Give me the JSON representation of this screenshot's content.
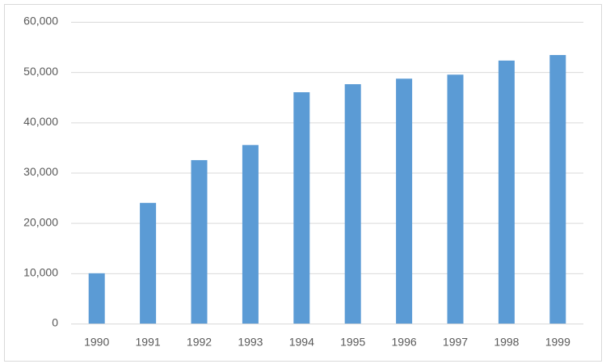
{
  "chart_data": {
    "type": "bar",
    "categories": [
      "1990",
      "1991",
      "1992",
      "1993",
      "1994",
      "1995",
      "1996",
      "1997",
      "1998",
      "1999"
    ],
    "values": [
      10000,
      24000,
      32500,
      35500,
      46000,
      47600,
      48700,
      49500,
      52300,
      53400
    ],
    "color": "#5b9bd5",
    "ylim": [
      0,
      60000
    ],
    "yticks": [
      0,
      {
        "value": 10000,
        "label": "10,000"
      },
      {
        "value": 20000,
        "label": "20,000"
      },
      {
        "value": 30000,
        "label": "30,000"
      },
      {
        "value": 40000,
        "label": "40,000"
      },
      {
        "value": 50000,
        "label": "50,000"
      },
      {
        "value": 60000,
        "label": "60,000"
      }
    ],
    "grid": true
  }
}
